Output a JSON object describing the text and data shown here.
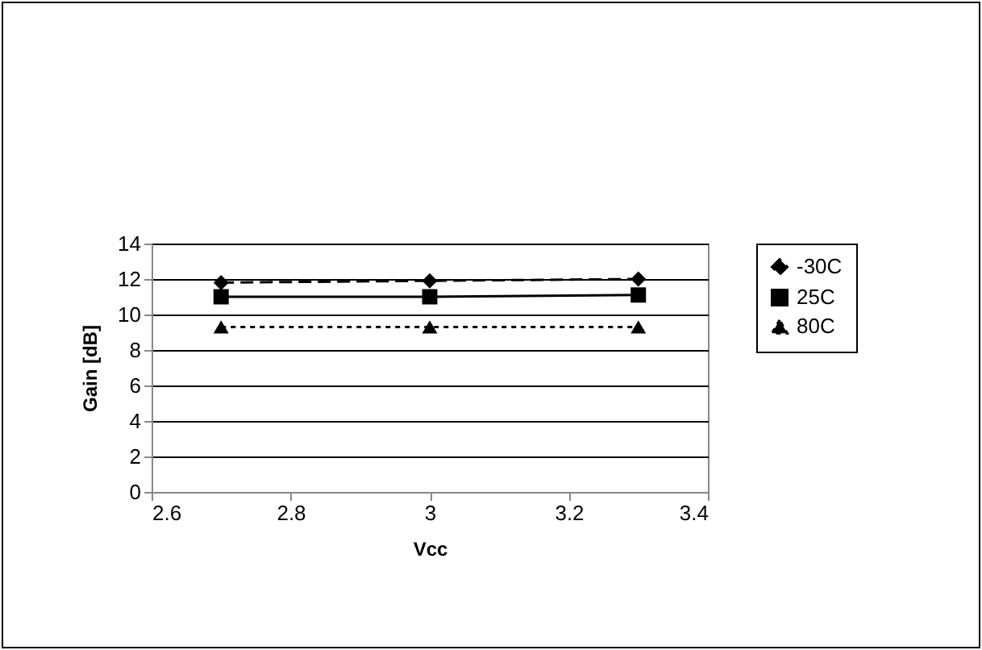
{
  "chart_data": {
    "type": "line",
    "xlabel": "Vcc",
    "ylabel": "Gain [dB]",
    "x": [
      2.7,
      3,
      3.3
    ],
    "series": [
      {
        "name": "-30C",
        "color": "#000000",
        "values": [
          11.8,
          11.9,
          12.0
        ],
        "marker": "diamond",
        "line_style": "dashed"
      },
      {
        "name": "25C",
        "color": "#000000",
        "values": [
          11.0,
          11.0,
          11.1
        ],
        "marker": "square",
        "line_style": "solid"
      },
      {
        "name": "80C",
        "color": "#000000",
        "values": [
          9.3,
          9.3,
          9.3
        ],
        "marker": "triangle",
        "line_style": "dotted"
      }
    ],
    "xlim": [
      2.6,
      3.4
    ],
    "xticks": [
      2.6,
      2.8,
      3,
      3.2,
      3.4
    ],
    "ylim": [
      0,
      14
    ],
    "yticks": [
      0,
      2,
      4,
      6,
      8,
      10,
      12,
      14
    ],
    "grid": "y",
    "legend": "right"
  }
}
